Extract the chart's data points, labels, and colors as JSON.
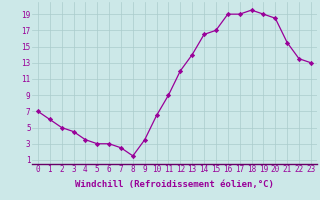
{
  "x": [
    0,
    1,
    2,
    3,
    4,
    5,
    6,
    7,
    8,
    9,
    10,
    11,
    12,
    13,
    14,
    15,
    16,
    17,
    18,
    19,
    20,
    21,
    22,
    23
  ],
  "y": [
    7,
    6,
    5,
    4.5,
    3.5,
    3,
    3,
    2.5,
    1.5,
    3.5,
    6.5,
    9,
    12,
    14,
    16.5,
    17,
    19,
    19,
    19.5,
    19,
    18.5,
    15.5,
    13.5,
    13
  ],
  "line_color": "#990099",
  "marker": "D",
  "marker_size": 2.2,
  "background_color": "#cce8e8",
  "grid_color": "#aacccc",
  "xlabel": "Windchill (Refroidissement éolien,°C)",
  "xlabel_fontsize": 6.5,
  "tick_fontsize": 5.5,
  "ylabel_ticks": [
    1,
    3,
    5,
    7,
    9,
    11,
    13,
    15,
    17,
    19
  ],
  "xlim": [
    -0.5,
    23.5
  ],
  "ylim": [
    0.5,
    20.5
  ],
  "xtick_labels": [
    "0",
    "1",
    "2",
    "3",
    "4",
    "5",
    "6",
    "7",
    "8",
    "9",
    "10",
    "11",
    "12",
    "13",
    "14",
    "15",
    "16",
    "17",
    "18",
    "19",
    "20",
    "21",
    "22",
    "23"
  ]
}
